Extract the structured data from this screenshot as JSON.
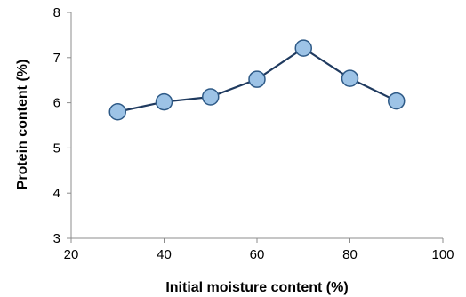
{
  "chart_data": {
    "type": "line",
    "title": "",
    "xlabel": "Initial moisture content (%)",
    "ylabel": "Protein content (%)",
    "xlim": [
      20,
      100
    ],
    "ylim": [
      3,
      8
    ],
    "xticks": [
      20,
      40,
      60,
      80,
      100
    ],
    "yticks": [
      3,
      4,
      5,
      6,
      7,
      8
    ],
    "grid": false,
    "legend": "none",
    "series": [
      {
        "x": [
          30,
          40,
          50,
          60,
          70,
          80,
          90
        ],
        "y": [
          5.8,
          6.02,
          6.13,
          6.52,
          7.21,
          6.54,
          6.04
        ]
      }
    ],
    "colors": {
      "line": "#1f3a5f",
      "marker_fill": "#9dc3e6",
      "marker_stroke": "#2e5a87",
      "axis": "#8c8c8c"
    }
  }
}
